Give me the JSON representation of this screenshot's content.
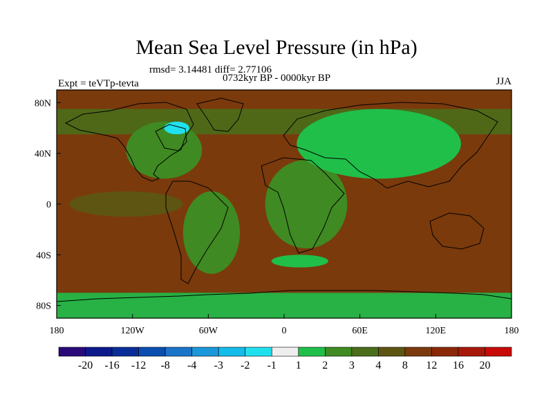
{
  "header": {
    "title": "Mean Sea Level Pressure (in hPa)",
    "stats": "rmsd= 3.14481 diff= 2.77106",
    "subtitle": "0732kyr BP - 0000kyr BP",
    "left_label": "Expt = teVTp-tevta",
    "right_label": "JJA"
  },
  "chart_data": {
    "type": "heatmap",
    "title": "Mean Sea Level Pressure (in hPa)",
    "subtitle": "0732kyr BP - 0000kyr BP",
    "xlabel": "",
    "ylabel": "",
    "xlim": [
      -180,
      180
    ],
    "ylim": [
      -90,
      90
    ],
    "x_ticks": [
      {
        "value": -180,
        "label": "180"
      },
      {
        "value": -120,
        "label": "120W"
      },
      {
        "value": -60,
        "label": "60W"
      },
      {
        "value": 0,
        "label": "0"
      },
      {
        "value": 60,
        "label": "60E"
      },
      {
        "value": 120,
        "label": "120E"
      },
      {
        "value": 180,
        "label": "180"
      }
    ],
    "y_ticks": [
      {
        "value": 80,
        "label": "80N"
      },
      {
        "value": 40,
        "label": "40N"
      },
      {
        "value": 0,
        "label": "0"
      },
      {
        "value": -40,
        "label": "40S"
      },
      {
        "value": -80,
        "label": "80S"
      }
    ],
    "colorbar": {
      "labels": [
        "-20",
        "-16",
        "-12",
        "-8",
        "-4",
        "-3",
        "-2",
        "-1",
        "1",
        "2",
        "3",
        "4",
        "8",
        "12",
        "16",
        "20"
      ],
      "colors": [
        "#2a0a78",
        "#0d1a8c",
        "#0a2d9a",
        "#0a4eb0",
        "#1a74c8",
        "#1c98da",
        "#14bcea",
        "#20e0ee",
        "#eeeeee",
        "#1fbf4a",
        "#3f8a22",
        "#4a6e1a",
        "#5e5512",
        "#7a3a0c",
        "#8a2808",
        "#a81808",
        "#c80a08"
      ]
    },
    "regions": [
      {
        "label": "Ocean background",
        "lon": [
          -180,
          180
        ],
        "lat": [
          -90,
          90
        ],
        "value": 8
      },
      {
        "label": "Northern high-latitude ring",
        "lon": [
          -180,
          180
        ],
        "lat": [
          55,
          75
        ],
        "value": 3
      },
      {
        "label": "Equatorial Pacific band",
        "lon": [
          -170,
          -80
        ],
        "lat": [
          -10,
          10
        ],
        "value": 4
      },
      {
        "label": "North America",
        "lon": [
          -125,
          -65
        ],
        "lat": [
          20,
          65
        ],
        "value": 2
      },
      {
        "label": "South America",
        "lon": [
          -80,
          -35
        ],
        "lat": [
          -55,
          10
        ],
        "value": 2
      },
      {
        "label": "Africa",
        "lon": [
          -15,
          50
        ],
        "lat": [
          -35,
          35
        ],
        "value": 2
      },
      {
        "label": "Eurasia high",
        "lon": [
          10,
          140
        ],
        "lat": [
          20,
          75
        ],
        "value": 1
      },
      {
        "label": "South Atlantic high",
        "lon": [
          -10,
          35
        ],
        "lat": [
          -50,
          -40
        ],
        "value": 1
      },
      {
        "label": "Hudson Bay low",
        "lon": [
          -95,
          -75
        ],
        "lat": [
          55,
          65
        ],
        "value": -2
      },
      {
        "label": "Antarctica",
        "lon": [
          -180,
          180
        ],
        "lat": [
          -90,
          -70
        ],
        "value": 1
      }
    ]
  }
}
